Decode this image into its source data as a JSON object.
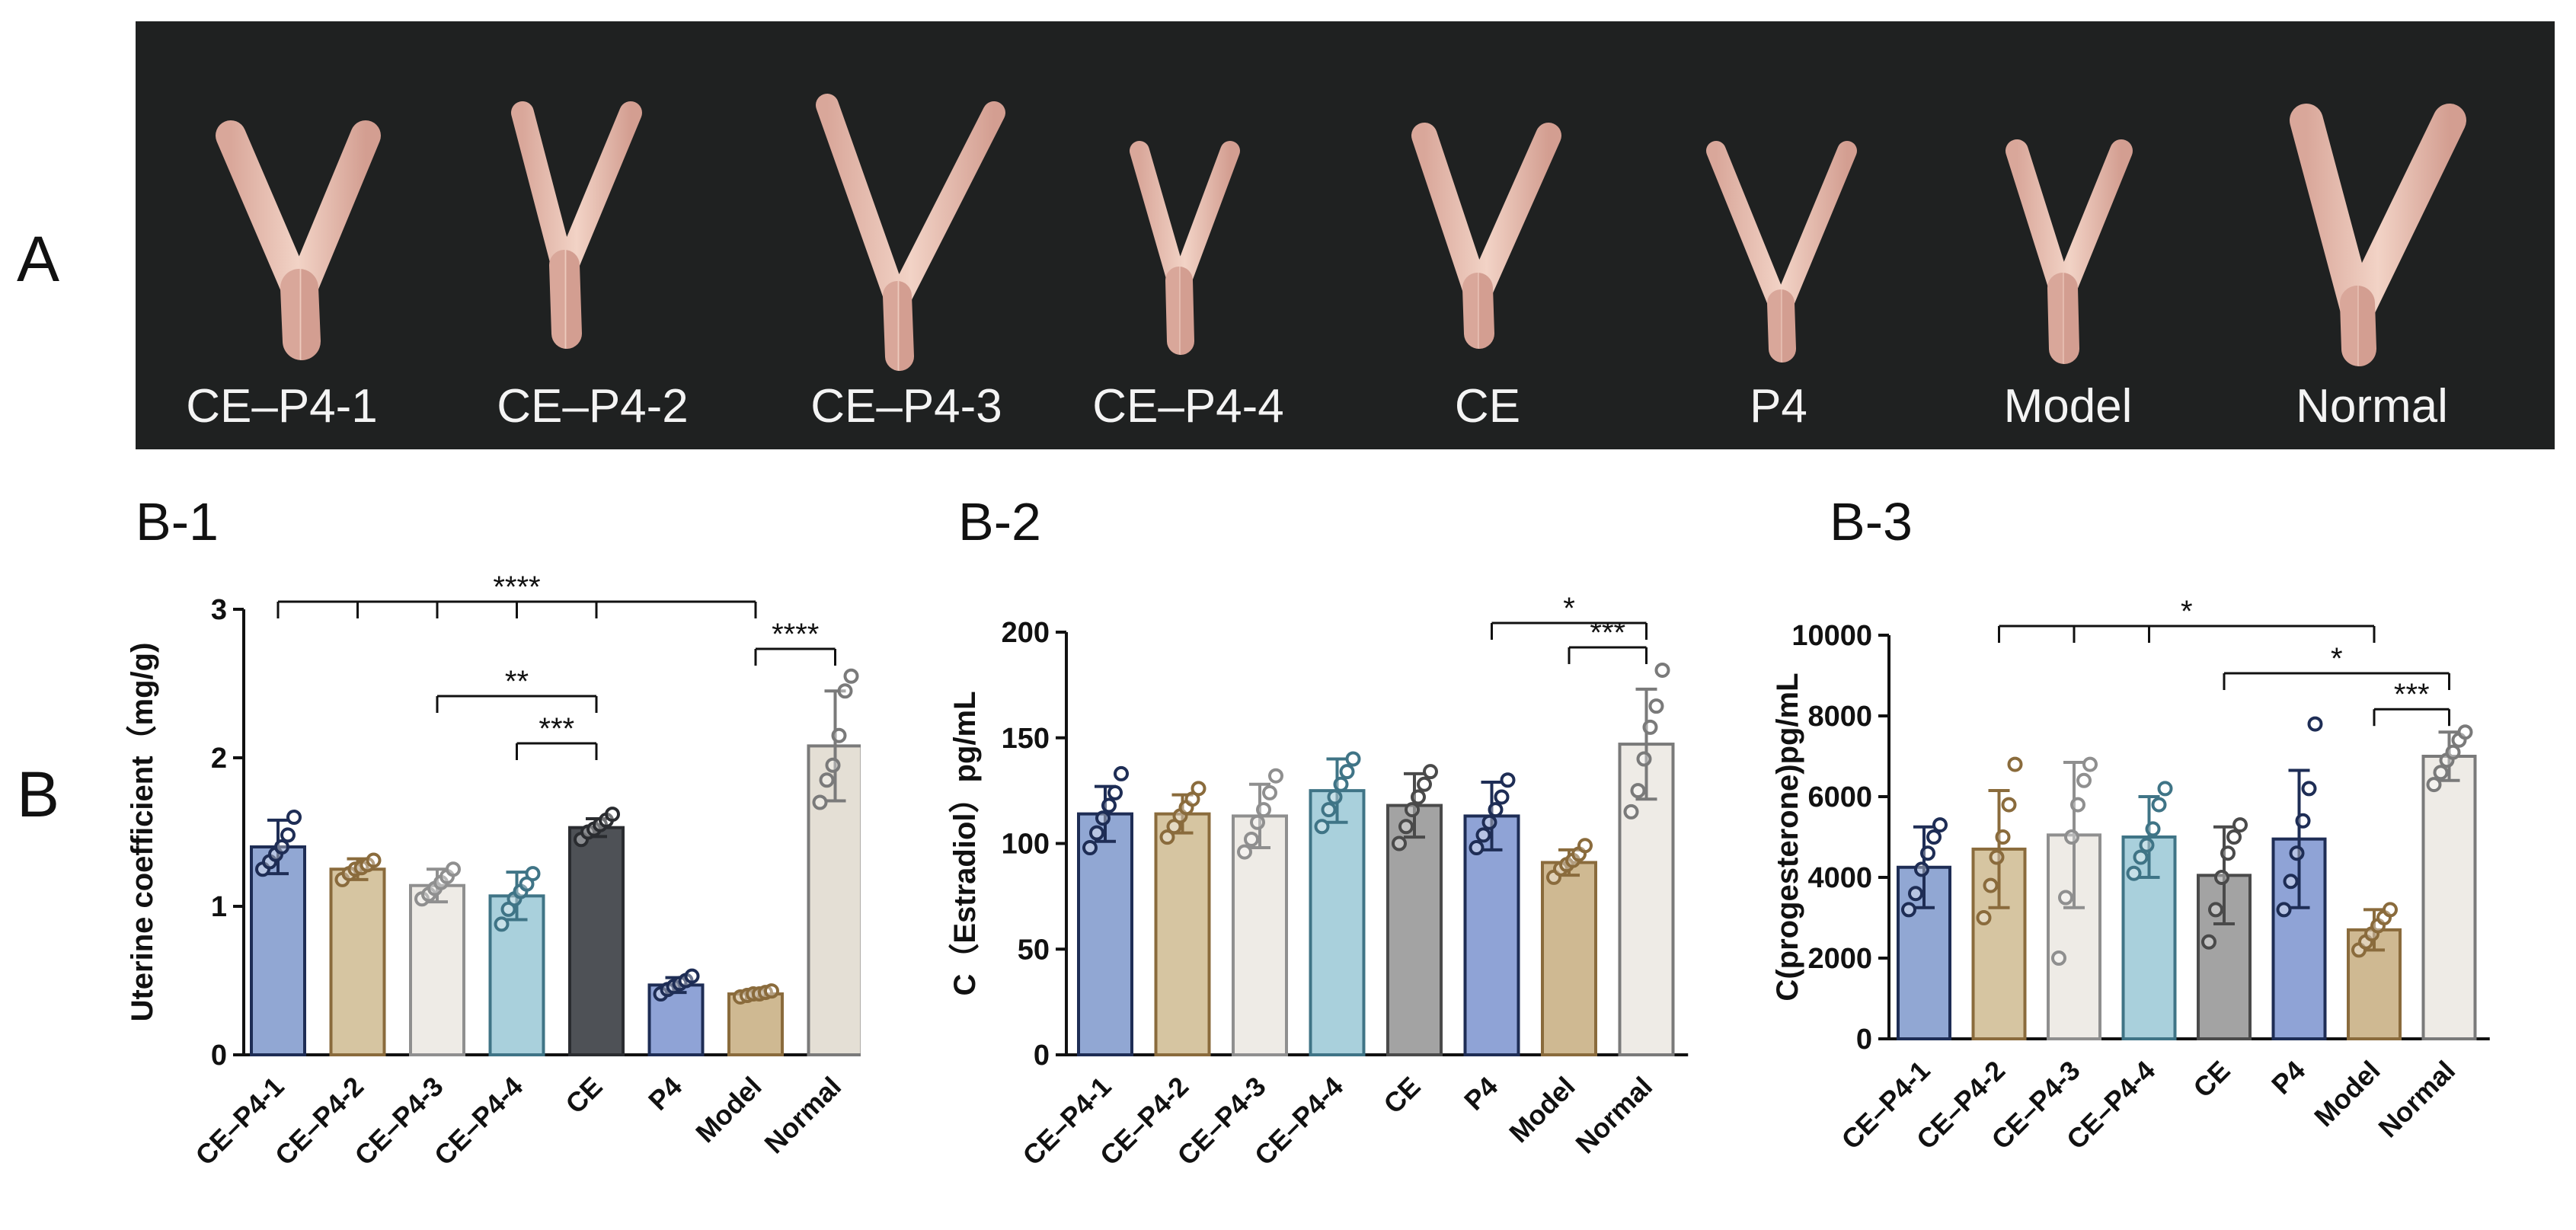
{
  "figure": {
    "panel_a_letter": "A",
    "panel_b_letter": "B",
    "photo_labels": [
      "CE–P4-1",
      "CE–P4-2",
      "CE–P4-3",
      "CE–P4-4",
      "CE",
      "P4",
      "Model",
      "Normal"
    ]
  },
  "colors": {
    "groups": [
      "#91a7d3",
      "#d6c5a1",
      "#eeebe6",
      "#a9d0dc",
      "#4e5156",
      "#8fa3d6",
      "#cfb992",
      "#e4dfd5"
    ],
    "edges": [
      "#1e2d55",
      "#8a6b3c",
      "#8f8f8f",
      "#3f7486",
      "#2a2c30",
      "#1e2d55",
      "#8a6b3c",
      "#7a7a7a"
    ],
    "b2_groups": [
      "#91a7d3",
      "#d6c5a1",
      "#eeebe6",
      "#a9d0dc",
      "#a3a3a3",
      "#8fa3d6",
      "#cfb992",
      "#eeebe6"
    ],
    "b2_edges": [
      "#1e2d55",
      "#8a6b3c",
      "#8f8f8f",
      "#3f7486",
      "#4a4a4a",
      "#1e2d55",
      "#8a6b3c",
      "#7a7a7a"
    ],
    "b3_groups": [
      "#91a7d3",
      "#d6c5a1",
      "#eeebe6",
      "#a9d0dc",
      "#a3a3a3",
      "#8fa3d6",
      "#cfb992",
      "#eeebe6"
    ],
    "b3_edges": [
      "#1e2d55",
      "#8a6b3c",
      "#8f8f8f",
      "#3f7486",
      "#4a4a4a",
      "#1e2d55",
      "#8a6b3c",
      "#7a7a7a"
    ]
  },
  "chart_data": [
    {
      "id": "b1",
      "panel_label": "B-1",
      "type": "bar",
      "categories": [
        "CE–P4-1",
        "CE–P4-2",
        "CE–P4-3",
        "CE–P4-4",
        "CE",
        "P4",
        "Model",
        "Normal"
      ],
      "values": [
        1.4,
        1.25,
        1.14,
        1.07,
        1.53,
        0.47,
        0.41,
        2.08
      ],
      "errors": [
        0.18,
        0.07,
        0.11,
        0.16,
        0.06,
        0.05,
        0.02,
        0.37
      ],
      "points": [
        [
          1.25,
          1.3,
          1.35,
          1.4,
          1.48,
          1.6
        ],
        [
          1.18,
          1.22,
          1.25,
          1.26,
          1.28,
          1.31
        ],
        [
          1.05,
          1.08,
          1.12,
          1.16,
          1.2,
          1.25
        ],
        [
          0.88,
          0.98,
          1.05,
          1.1,
          1.15,
          1.22
        ],
        [
          1.45,
          1.5,
          1.52,
          1.55,
          1.58,
          1.62
        ],
        [
          0.41,
          0.44,
          0.46,
          0.48,
          0.5,
          0.53
        ],
        [
          0.39,
          0.4,
          0.41,
          0.41,
          0.42,
          0.43
        ],
        [
          1.7,
          1.85,
          1.95,
          2.15,
          2.45,
          2.55
        ]
      ],
      "ylabel": "Uterine coefficient（mg/g)",
      "ylim": [
        0,
        3
      ],
      "yticks": [
        0,
        1,
        2,
        3
      ],
      "significance": [
        {
          "groups": [
            0,
            1,
            2,
            3,
            4,
            6
          ],
          "label": "****"
        },
        {
          "groups": [
            6,
            7
          ],
          "label": "****"
        },
        {
          "groups": [
            2,
            4
          ],
          "label": "**"
        },
        {
          "groups": [
            3,
            4
          ],
          "label": "***"
        }
      ]
    },
    {
      "id": "b2",
      "panel_label": "B-2",
      "type": "bar",
      "categories": [
        "CE–P4-1",
        "CE–P4-2",
        "CE–P4-3",
        "CE–P4-4",
        "CE",
        "P4",
        "Model",
        "Normal"
      ],
      "values": [
        114,
        114,
        113,
        125,
        118,
        113,
        91,
        147
      ],
      "errors": [
        13,
        9,
        15,
        15,
        15,
        16,
        6,
        26
      ],
      "points": [
        [
          98,
          105,
          112,
          118,
          124,
          133
        ],
        [
          103,
          108,
          113,
          117,
          121,
          126
        ],
        [
          96,
          102,
          110,
          116,
          124,
          132
        ],
        [
          108,
          116,
          122,
          128,
          134,
          140
        ],
        [
          100,
          108,
          116,
          122,
          128,
          134
        ],
        [
          98,
          104,
          110,
          116,
          122,
          130
        ],
        [
          84,
          88,
          90,
          92,
          95,
          99
        ],
        [
          115,
          125,
          140,
          155,
          165,
          182
        ]
      ],
      "ylabel": "C（Estradiol）pg/mL",
      "ylim": [
        0,
        200
      ],
      "yticks": [
        0,
        50,
        100,
        150,
        200
      ],
      "significance": [
        {
          "groups": [
            5,
            7
          ],
          "label": "*"
        },
        {
          "groups": [
            6,
            7
          ],
          "label": "***"
        }
      ]
    },
    {
      "id": "b3",
      "panel_label": "B-3",
      "type": "bar",
      "categories": [
        "CE–P4-1",
        "CE–P4-2",
        "CE–P4-3",
        "CE–P4-4",
        "CE",
        "P4",
        "Model",
        "Normal"
      ],
      "values": [
        4250,
        4700,
        5050,
        5000,
        4050,
        4950,
        2700,
        7000
      ],
      "errors": [
        1000,
        1450,
        1800,
        1000,
        1200,
        1700,
        500,
        600
      ],
      "points": [
        [
          3200,
          3600,
          4200,
          4600,
          5000,
          5300
        ],
        [
          3000,
          3800,
          4500,
          5000,
          5800,
          6800
        ],
        [
          2000,
          3500,
          5000,
          5800,
          6400,
          6800
        ],
        [
          4100,
          4500,
          4800,
          5200,
          5800,
          6200
        ],
        [
          2400,
          3200,
          4000,
          4600,
          5000,
          5300
        ],
        [
          3200,
          3900,
          4600,
          5400,
          6200,
          7800
        ],
        [
          2200,
          2400,
          2600,
          2800,
          3000,
          3200
        ],
        [
          6300,
          6600,
          6900,
          7100,
          7400,
          7600
        ]
      ],
      "ylabel": "C(progesterone)pg/mL",
      "ylim": [
        0,
        10000
      ],
      "yticks": [
        0,
        2000,
        4000,
        6000,
        8000,
        10000
      ],
      "significance": [
        {
          "groups": [
            1,
            2,
            3,
            6
          ],
          "label": "*"
        },
        {
          "groups": [
            4,
            7
          ],
          "label": "*"
        },
        {
          "groups": [
            6,
            7
          ],
          "label": "***"
        }
      ]
    }
  ]
}
